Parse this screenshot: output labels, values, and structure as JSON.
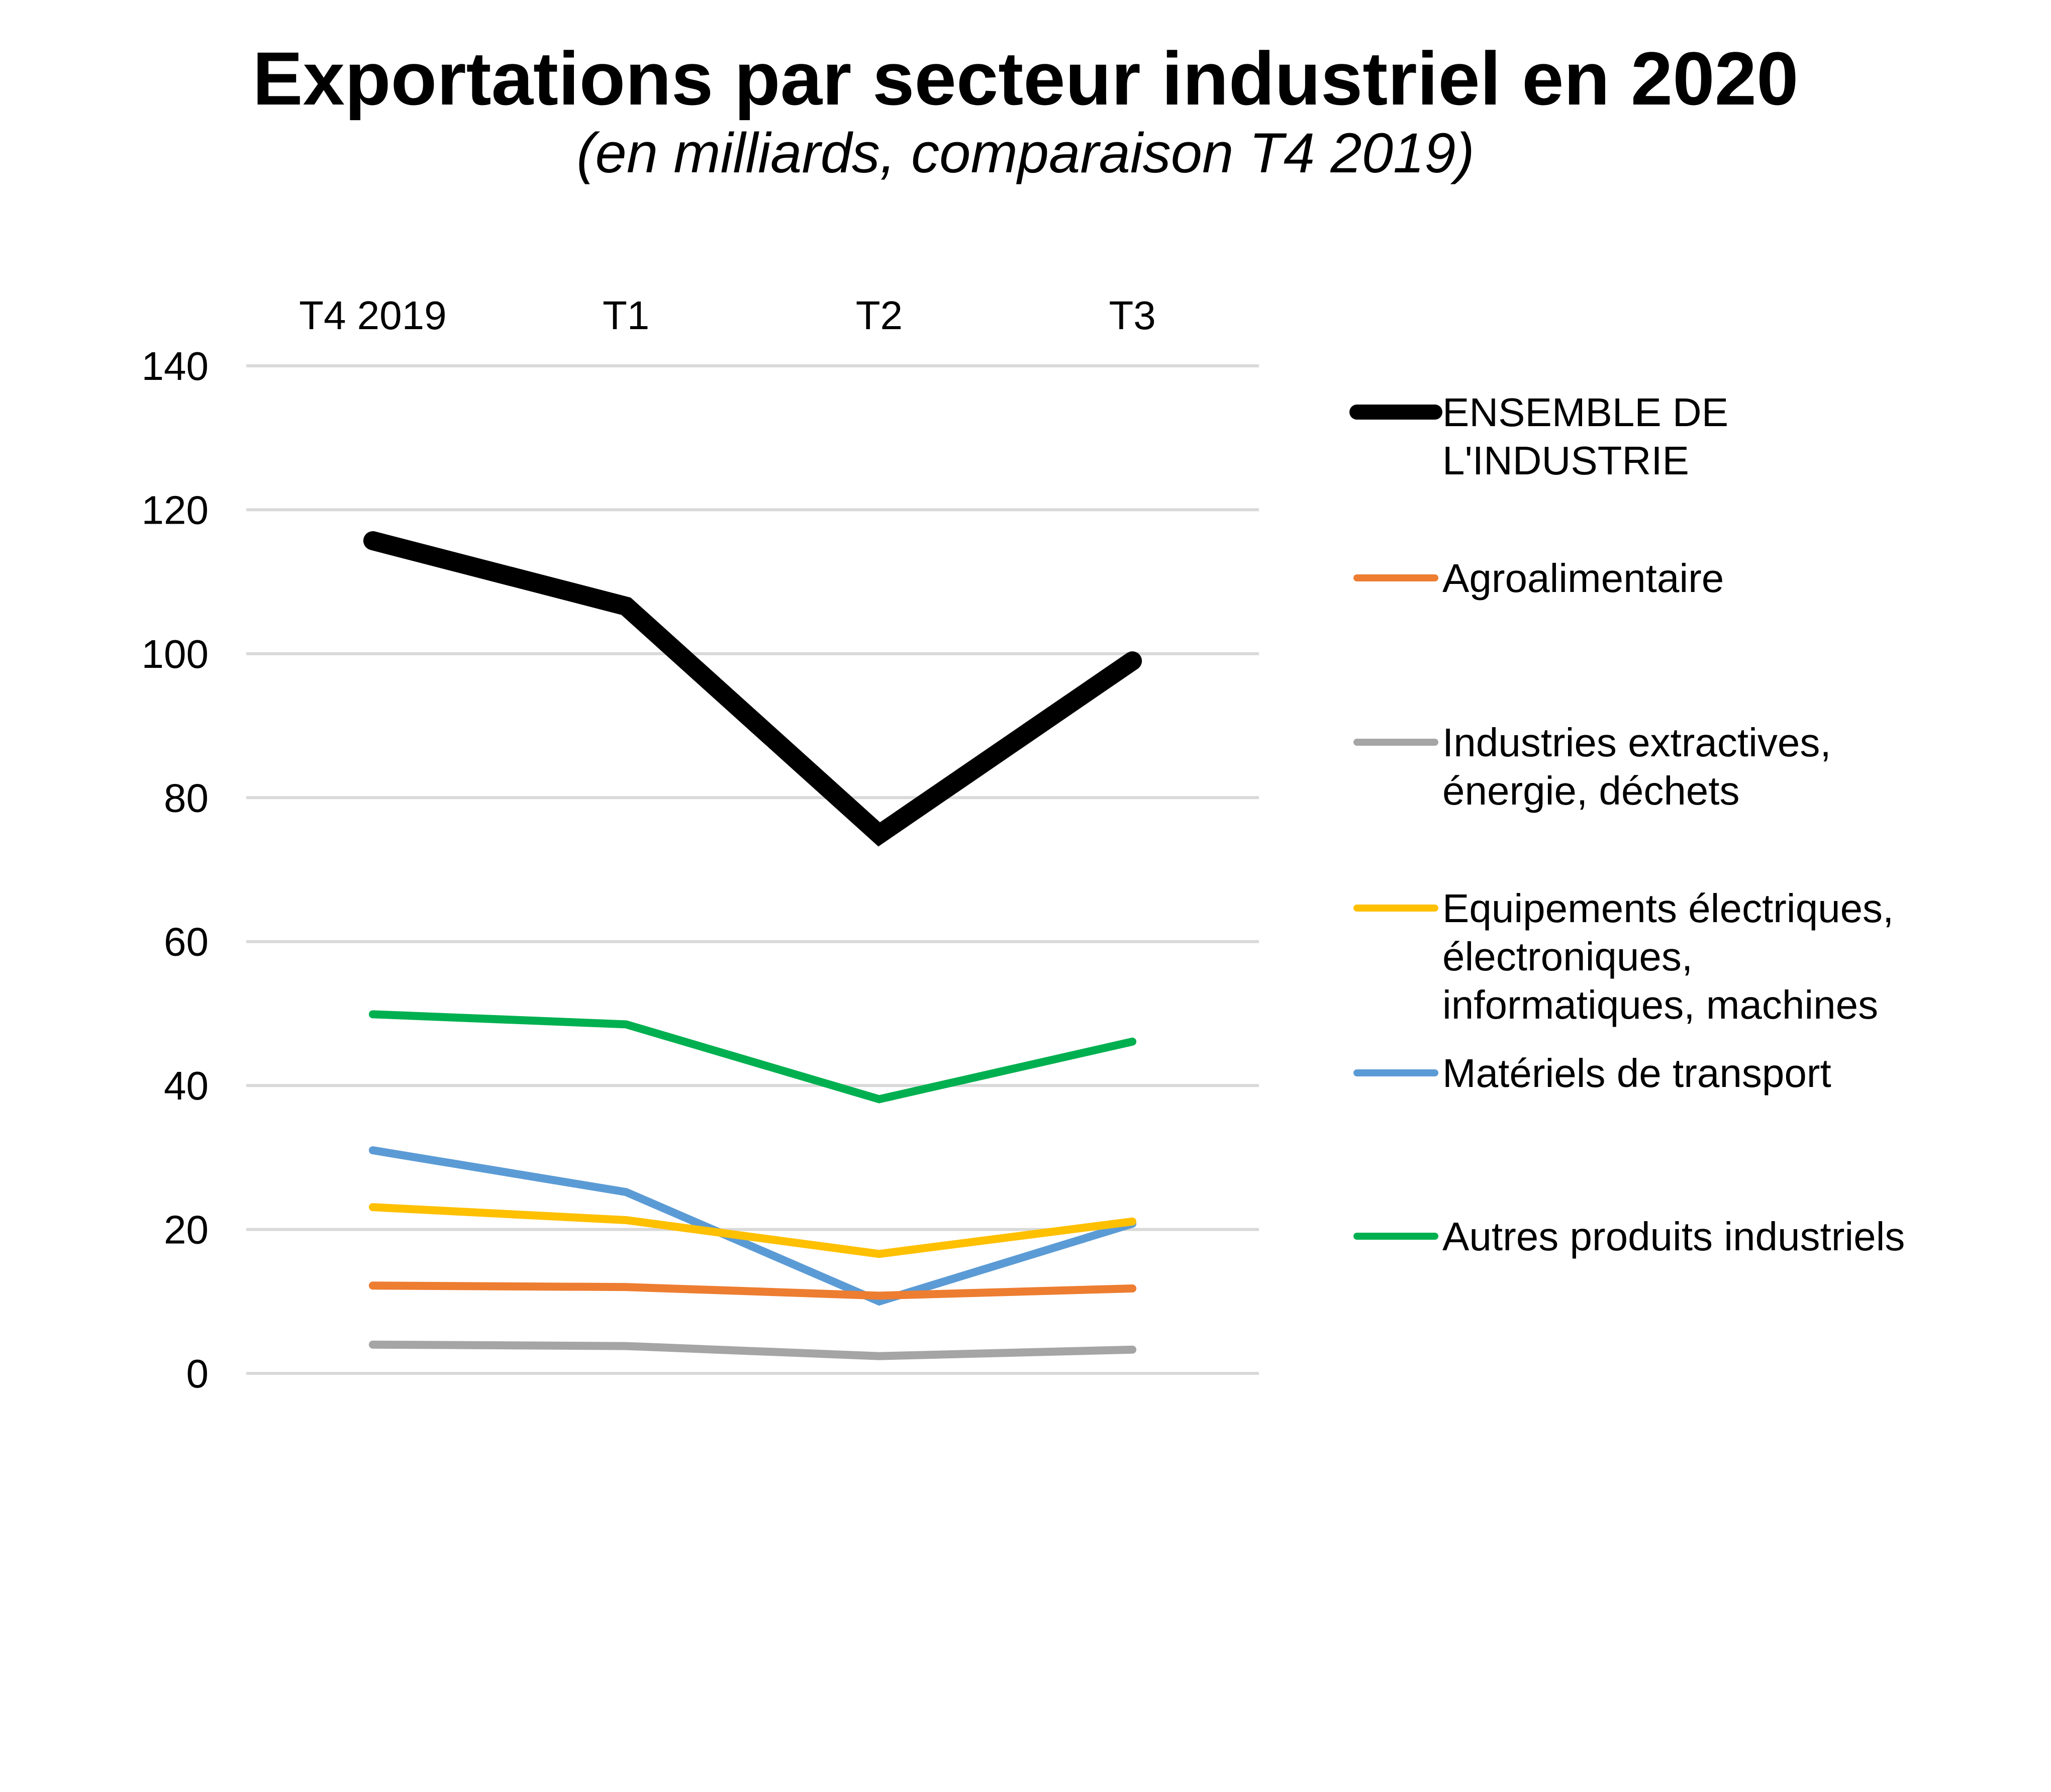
{
  "chart_data": {
    "type": "line",
    "title": "Exportations par secteur industriel en 2020",
    "subtitle": "(en milliards, comparaison T4 2019)",
    "xlabel": "",
    "ylabel": "",
    "categories": [
      "T4 2019",
      "T1",
      "T2",
      "T3"
    ],
    "x_axis_position": "top",
    "ylim": [
      0,
      140
    ],
    "yticks": [
      0,
      20,
      40,
      60,
      80,
      100,
      120,
      140
    ],
    "grid": true,
    "legend_position": "right",
    "series": [
      {
        "name": "ENSEMBLE DE L'INDUSTRIE",
        "legend_lines": [
          "ENSEMBLE DE",
          "L'INDUSTRIE"
        ],
        "color": "#000000",
        "emphasis": "thick",
        "values": [
          115.7,
          106.6,
          74.9,
          99.0
        ]
      },
      {
        "name": "Agroalimentaire",
        "legend_lines": [
          "Agroalimentaire"
        ],
        "color": "#ED7D31",
        "values": [
          12.2,
          12.0,
          10.8,
          11.8
        ]
      },
      {
        "name": "Industries extractives, énergie, déchets",
        "legend_lines": [
          "Industries extractives,",
          "énergie, déchets"
        ],
        "color": "#A5A5A5",
        "values": [
          4.0,
          3.8,
          2.4,
          3.3
        ]
      },
      {
        "name": "Equipements électriques, électroniques, informatiques, machines",
        "legend_lines": [
          "Equipements électriques,",
          "électroniques,",
          "informatiques, machines"
        ],
        "color": "#FFC000",
        "values": [
          23.1,
          21.3,
          16.6,
          21.1
        ]
      },
      {
        "name": "Matériels de transport",
        "legend_lines": [
          "Matériels de transport"
        ],
        "color": "#5B9BD5",
        "values": [
          31.0,
          25.2,
          10.0,
          20.8
        ]
      },
      {
        "name": "Autres produits industriels",
        "legend_lines": [
          "Autres produits industriels"
        ],
        "color": "#00B050",
        "values": [
          49.9,
          48.5,
          38.1,
          46.1
        ]
      }
    ]
  }
}
